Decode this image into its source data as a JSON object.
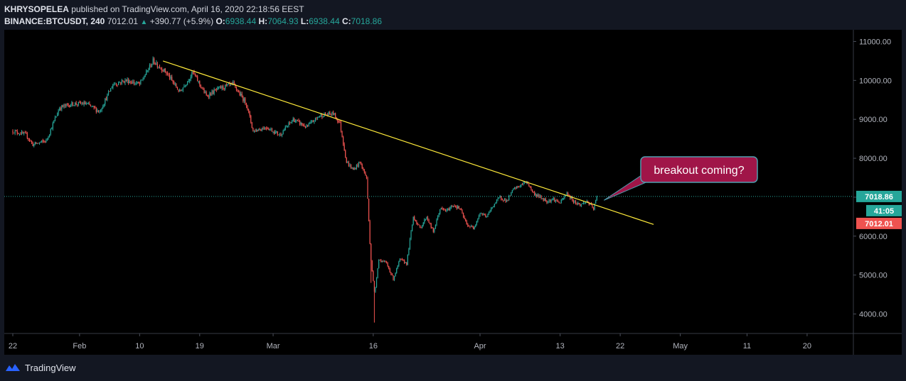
{
  "header": {
    "author": "KHRYSOPELEA",
    "published_text": "published on TradingView.com, April 16, 2020 22:18:56 EEST",
    "symbol": "BINANCE:BTCUSDT, 240",
    "last_price": "7012.01",
    "change": "+390.77 (+5.9%)",
    "o_label": "O:",
    "o_value": "6938.44",
    "h_label": "H:",
    "h_value": "7064.93",
    "l_label": "L:",
    "l_value": "6938.44",
    "c_label": "C:",
    "c_value": "7018.86"
  },
  "footer": {
    "brand": "TradingView"
  },
  "colors": {
    "background": "#131722",
    "chart_background": "#000000",
    "up": "#26a69a",
    "down": "#ef5350",
    "trendline": "#ffeb3b",
    "callout_fill": "#a01548",
    "callout_border": "#4f9fb0"
  },
  "chart_data": {
    "type": "candlestick",
    "title": "BINANCE:BTCUSDT, 240",
    "ylim": [
      3500,
      11300
    ],
    "y_ticks": [
      4000,
      5000,
      6000,
      7000,
      8000,
      9000,
      10000,
      11000
    ],
    "y_tick_labels": [
      "4000.00",
      "5000.00",
      "6000.00",
      "7000.00",
      "8000.00",
      "9000.00",
      "10000.00",
      "11000.00"
    ],
    "x_ticks": [
      {
        "label": "22",
        "day": 0
      },
      {
        "label": "Feb",
        "day": 10
      },
      {
        "label": "10",
        "day": 19
      },
      {
        "label": "19",
        "day": 28
      },
      {
        "label": "Mar",
        "day": 39
      },
      {
        "label": "16",
        "day": 54
      },
      {
        "label": "Apr",
        "day": 70
      },
      {
        "label": "13",
        "day": 82
      },
      {
        "label": "22",
        "day": 91
      },
      {
        "label": "May",
        "day": 100
      },
      {
        "label": "11",
        "day": 110
      },
      {
        "label": "20",
        "day": 119
      }
    ],
    "x_start": "2020-01-22",
    "x_end": "2020-05-27",
    "price_anchors": [
      [
        0,
        8700
      ],
      [
        2,
        8600
      ],
      [
        3,
        8350
      ],
      [
        5,
        8450
      ],
      [
        7,
        9300
      ],
      [
        9,
        9400
      ],
      [
        11,
        9400
      ],
      [
        13,
        9200
      ],
      [
        15,
        9900
      ],
      [
        17,
        10000
      ],
      [
        19,
        9900
      ],
      [
        21,
        10500
      ],
      [
        23,
        10200
      ],
      [
        25,
        9700
      ],
      [
        27,
        10200
      ],
      [
        29,
        9600
      ],
      [
        31,
        9800
      ],
      [
        33,
        9900
      ],
      [
        35,
        9400
      ],
      [
        36,
        8700
      ],
      [
        38,
        8800
      ],
      [
        40,
        8600
      ],
      [
        42,
        9000
      ],
      [
        44,
        8800
      ],
      [
        46,
        9100
      ],
      [
        48,
        9150
      ],
      [
        49,
        8900
      ],
      [
        50,
        7900
      ],
      [
        51,
        7700
      ],
      [
        52,
        7900
      ],
      [
        53,
        7500
      ],
      [
        53.6,
        5500
      ],
      [
        54.2,
        4500
      ],
      [
        54.8,
        5400
      ],
      [
        56,
        5300
      ],
      [
        57,
        4900
      ],
      [
        58,
        5400
      ],
      [
        59,
        5300
      ],
      [
        60,
        6500
      ],
      [
        61,
        6200
      ],
      [
        62,
        6500
      ],
      [
        63,
        6100
      ],
      [
        64,
        6700
      ],
      [
        65,
        6650
      ],
      [
        66,
        6800
      ],
      [
        67,
        6700
      ],
      [
        68,
        6300
      ],
      [
        69,
        6200
      ],
      [
        70,
        6600
      ],
      [
        71,
        6500
      ],
      [
        72,
        6800
      ],
      [
        73,
        7000
      ],
      [
        74,
        6900
      ],
      [
        75,
        7200
      ],
      [
        76,
        7300
      ],
      [
        77,
        7400
      ],
      [
        78,
        7100
      ],
      [
        79,
        7000
      ],
      [
        80,
        6900
      ],
      [
        81,
        6950
      ],
      [
        82,
        6850
      ],
      [
        83,
        7100
      ],
      [
        84,
        6900
      ],
      [
        85,
        6800
      ],
      [
        86,
        6900
      ],
      [
        87,
        6700
      ],
      [
        87.5,
        7018.86
      ]
    ],
    "last_day": 87.5,
    "trendline": {
      "start": {
        "day": 22.5,
        "price": 10500
      },
      "end": {
        "day": 96,
        "price": 6300
      }
    },
    "last_price": 7018.86,
    "labels": {
      "close_tag": "7018.86",
      "countdown_tag": "41:05",
      "prev_tag": "7012.01"
    },
    "annotation": {
      "text": "breakout coming?",
      "anchor_day": 87.5,
      "anchor_price": 6920
    }
  }
}
